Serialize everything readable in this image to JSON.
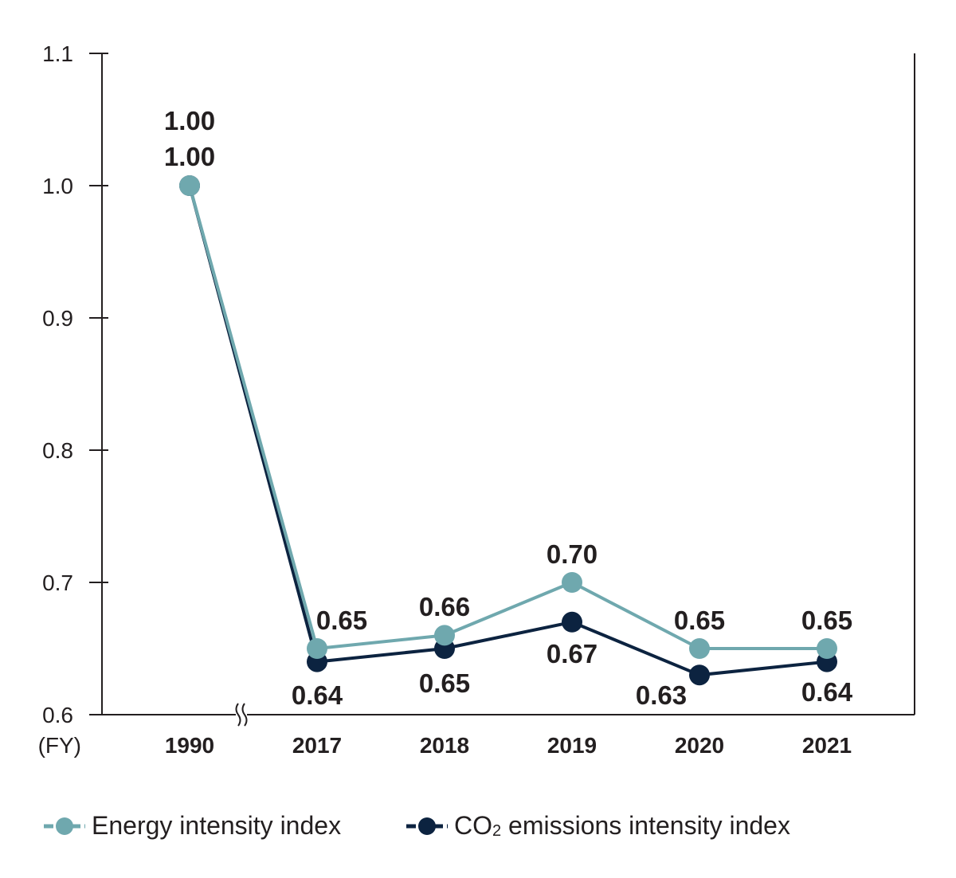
{
  "chart_data": {
    "type": "line",
    "categories": [
      "1990",
      "2017",
      "2018",
      "2019",
      "2020",
      "2021"
    ],
    "x_unit_label": "(FY)",
    "ylim": [
      0.6,
      1.1
    ],
    "y_ticks": [
      "0.6",
      "0.7",
      "0.8",
      "0.9",
      "1.0",
      "1.1"
    ],
    "axis_break_between": [
      "1990",
      "2017"
    ],
    "grid": false,
    "legend_position": "bottom",
    "series": [
      {
        "name": "Energy intensity index",
        "color": "#6fa8ae",
        "values": [
          1.0,
          0.65,
          0.66,
          0.7,
          0.65,
          0.65
        ],
        "labels": [
          "1.00",
          "0.65",
          "0.66",
          "0.70",
          "0.65",
          "0.65"
        ]
      },
      {
        "name_parts": [
          "CO",
          "2",
          " emissions intensity index"
        ],
        "color": "#0c2340",
        "values": [
          1.0,
          0.64,
          0.65,
          0.67,
          0.63,
          0.64
        ],
        "labels": [
          "1.00",
          "0.64",
          "0.65",
          "0.67",
          "0.63",
          "0.64"
        ]
      }
    ]
  }
}
